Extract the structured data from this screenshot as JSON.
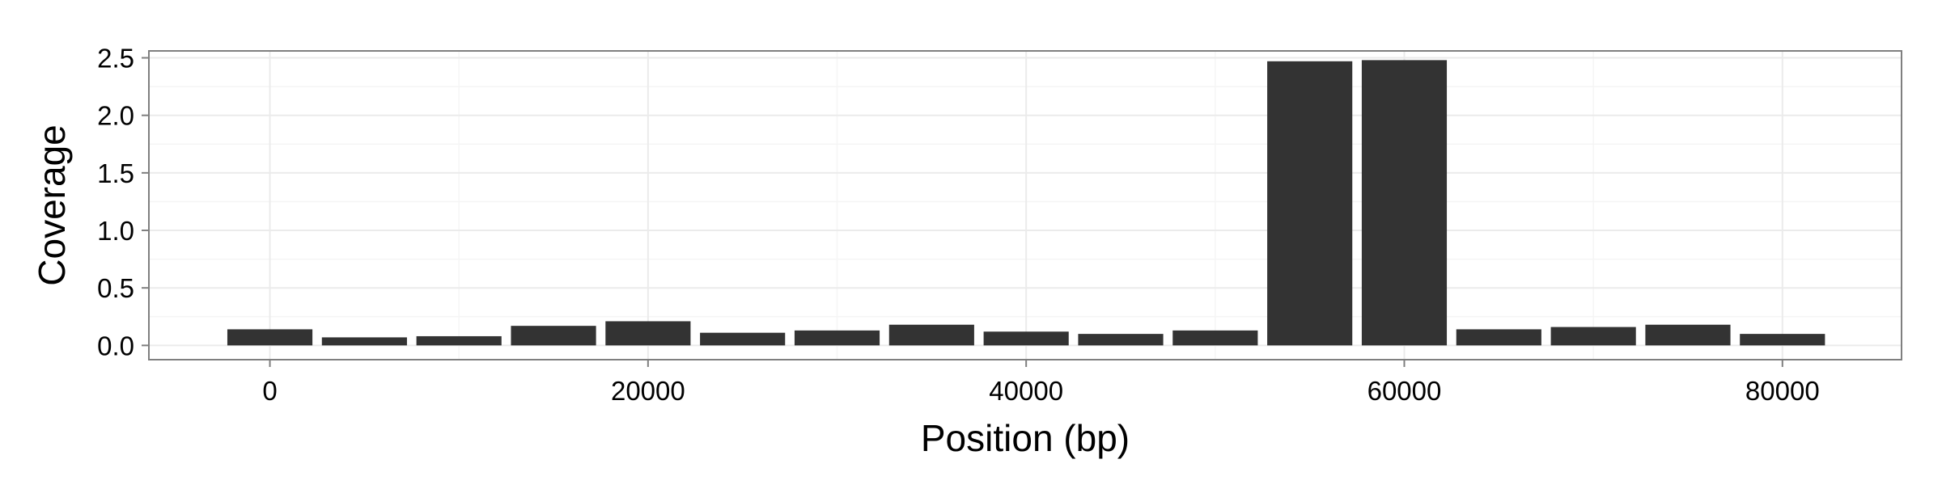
{
  "chart_data": {
    "type": "bar",
    "title": "",
    "xlabel": "Position (bp)",
    "ylabel": "Coverage",
    "x": [
      0,
      5000,
      10000,
      15000,
      20000,
      25000,
      30000,
      35000,
      40000,
      45000,
      50000,
      55000,
      60000,
      65000,
      70000,
      75000,
      80000
    ],
    "values": [
      0.14,
      0.07,
      0.08,
      0.17,
      0.21,
      0.11,
      0.13,
      0.18,
      0.12,
      0.1,
      0.13,
      2.47,
      2.48,
      0.14,
      0.16,
      0.18,
      0.1
    ],
    "xlim": [
      -6400,
      86300
    ],
    "ylim": [
      -0.124,
      2.56
    ],
    "x_ticks": [
      0,
      20000,
      40000,
      60000,
      80000
    ],
    "x_tick_labels": [
      "0",
      "20000",
      "40000",
      "60000",
      "80000"
    ],
    "y_ticks": [
      0.0,
      0.5,
      1.0,
      1.5,
      2.0,
      2.5
    ],
    "y_tick_labels": [
      "0.0",
      "0.5",
      "1.0",
      "1.5",
      "2.0",
      "2.5"
    ],
    "bar_width": 4500,
    "grid": true,
    "legend": "none",
    "colors": {
      "bar": "#333333",
      "grid_major": "#ebebeb",
      "grid_minor": "#f5f5f5",
      "panel_border": "#7f7f7f",
      "tick": "#7f7f7f",
      "text": "#000000"
    }
  }
}
